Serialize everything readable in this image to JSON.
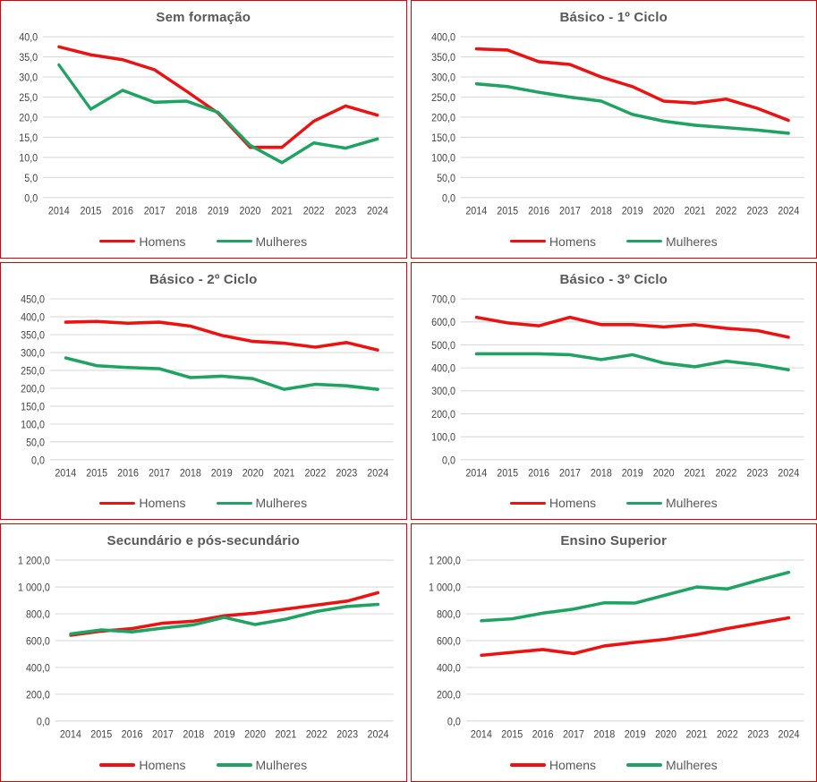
{
  "legend": {
    "items": [
      "Homens",
      "Mulheres"
    ]
  },
  "colors": {
    "homens": "#ee1111",
    "mulheres": "#1ea362",
    "panel_border": "#e00000",
    "gridline": "#d9d9d9",
    "title_text": "#595959",
    "tick_text": "#444444"
  },
  "chart_data": [
    {
      "type": "line",
      "title": "Sem formação",
      "x": [
        2014,
        2015,
        2016,
        2017,
        2018,
        2019,
        2020,
        2021,
        2022,
        2023,
        2024
      ],
      "ylim": [
        0,
        40
      ],
      "ytick_step": 5,
      "grid": true,
      "legend_position": "bottom",
      "tick_format": "decimal-comma, one decimal",
      "series": [
        {
          "name": "Homens",
          "color": "#ee1111",
          "values": [
            37.5,
            35.5,
            34.3,
            31.8,
            26.5,
            21.0,
            12.5,
            12.5,
            19.0,
            22.8,
            20.5
          ]
        },
        {
          "name": "Mulheres",
          "color": "#1ea362",
          "values": [
            33.0,
            22.0,
            26.7,
            23.7,
            24.0,
            21.2,
            13.0,
            8.7,
            13.6,
            12.3,
            14.6
          ]
        }
      ]
    },
    {
      "type": "line",
      "title": "Básico - 1º Ciclo",
      "x": [
        2014,
        2015,
        2016,
        2017,
        2018,
        2019,
        2020,
        2021,
        2022,
        2023,
        2024
      ],
      "ylim": [
        0,
        400
      ],
      "ytick_step": 50,
      "grid": true,
      "legend_position": "bottom",
      "tick_format": "decimal-comma, one decimal",
      "series": [
        {
          "name": "Homens",
          "color": "#ee1111",
          "values": [
            370,
            367,
            338,
            331,
            300,
            276,
            240,
            235,
            245,
            222,
            192
          ]
        },
        {
          "name": "Mulheres",
          "color": "#1ea362",
          "values": [
            283,
            276,
            262,
            250,
            240,
            207,
            190,
            180,
            174,
            168,
            160
          ]
        }
      ]
    },
    {
      "type": "line",
      "title": "Básico - 2º Ciclo",
      "x": [
        2014,
        2015,
        2016,
        2017,
        2018,
        2019,
        2020,
        2021,
        2022,
        2023,
        2024
      ],
      "ylim": [
        0,
        450
      ],
      "ytick_step": 50,
      "grid": true,
      "legend_position": "bottom",
      "tick_format": "decimal-comma, one decimal",
      "series": [
        {
          "name": "Homens",
          "color": "#ee1111",
          "values": [
            385,
            387,
            382,
            385,
            374,
            348,
            331,
            326,
            315,
            328,
            307
          ]
        },
        {
          "name": "Mulheres",
          "color": "#1ea362",
          "values": [
            285,
            263,
            258,
            255,
            230,
            234,
            227,
            197,
            211,
            207,
            197
          ]
        }
      ]
    },
    {
      "type": "line",
      "title": "Básico - 3º Ciclo",
      "x": [
        2014,
        2015,
        2016,
        2017,
        2018,
        2019,
        2020,
        2021,
        2022,
        2023,
        2024
      ],
      "ylim": [
        0,
        700
      ],
      "ytick_step": 100,
      "grid": true,
      "legend_position": "bottom",
      "tick_format": "decimal-comma, one decimal",
      "series": [
        {
          "name": "Homens",
          "color": "#ee1111",
          "values": [
            620,
            596,
            583,
            620,
            588,
            588,
            578,
            588,
            572,
            562,
            533
          ]
        },
        {
          "name": "Mulheres",
          "color": "#1ea362",
          "values": [
            461,
            461,
            461,
            457,
            436,
            457,
            421,
            405,
            429,
            414,
            392
          ]
        }
      ]
    },
    {
      "type": "line",
      "title": "Secundário e pós-secundário",
      "x": [
        2014,
        2015,
        2016,
        2017,
        2018,
        2019,
        2020,
        2021,
        2022,
        2023,
        2024
      ],
      "ylim": [
        0,
        1200
      ],
      "ytick_step": 200,
      "grid": true,
      "legend_position": "bottom",
      "tick_format": "decimal-comma, one decimal, space thousands",
      "series": [
        {
          "name": "Homens",
          "color": "#ee1111",
          "values": [
            640,
            670,
            690,
            730,
            745,
            785,
            805,
            835,
            865,
            895,
            958
          ]
        },
        {
          "name": "Mulheres",
          "color": "#1ea362",
          "values": [
            650,
            680,
            665,
            693,
            718,
            773,
            720,
            760,
            818,
            855,
            870
          ]
        }
      ]
    },
    {
      "type": "line",
      "title": "Ensino Superior",
      "x": [
        2014,
        2015,
        2016,
        2017,
        2018,
        2019,
        2020,
        2021,
        2022,
        2023,
        2024
      ],
      "ylim": [
        0,
        1200
      ],
      "ytick_step": 200,
      "grid": true,
      "legend_position": "bottom",
      "tick_format": "decimal-comma, one decimal, space thousands",
      "series": [
        {
          "name": "Homens",
          "color": "#ee1111",
          "values": [
            490,
            512,
            533,
            503,
            560,
            587,
            610,
            645,
            690,
            730,
            770
          ]
        },
        {
          "name": "Mulheres",
          "color": "#1ea362",
          "values": [
            748,
            762,
            805,
            835,
            882,
            880,
            940,
            1000,
            985,
            1050,
            1110
          ]
        }
      ]
    }
  ]
}
